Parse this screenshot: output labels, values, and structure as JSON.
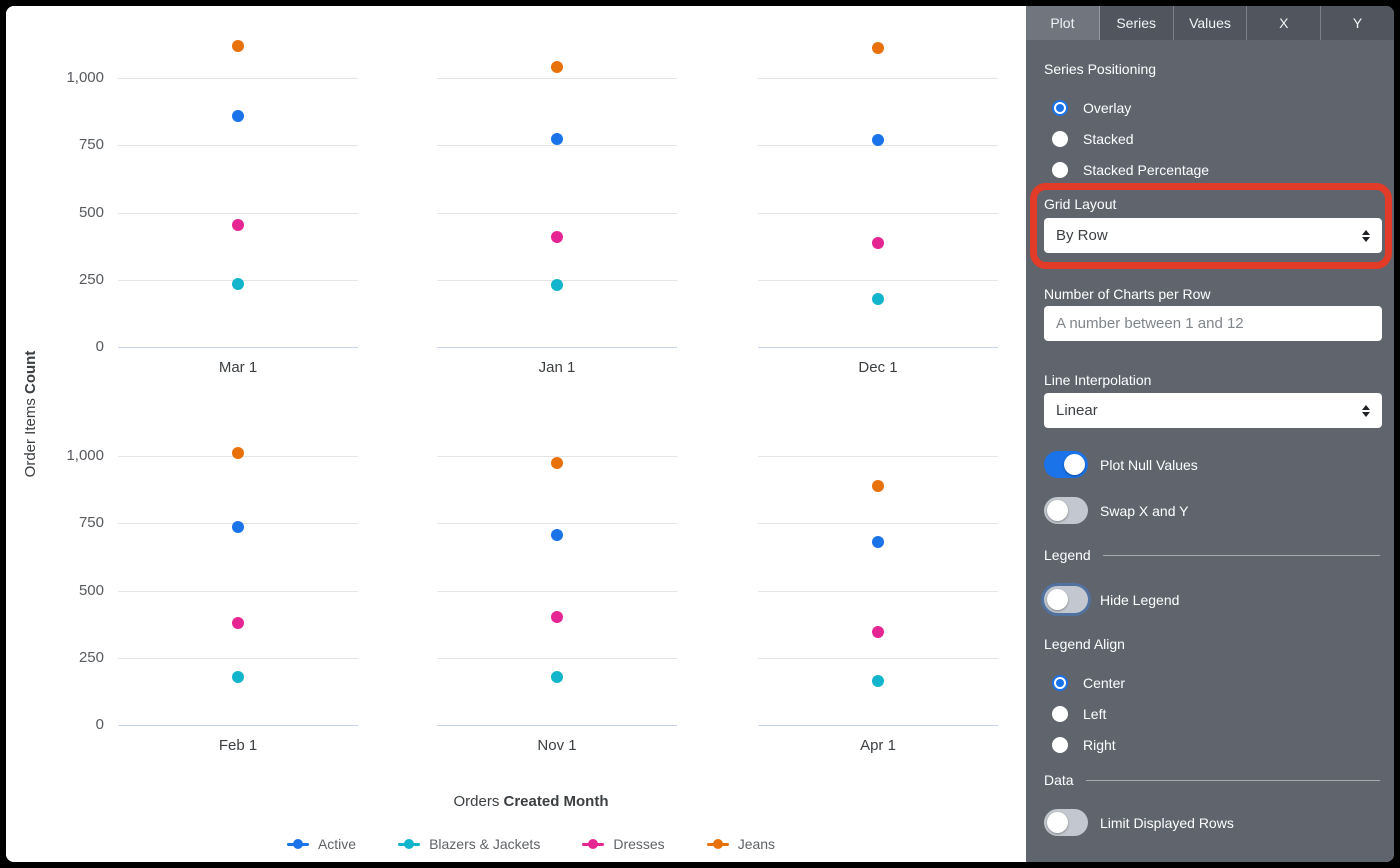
{
  "panel": {
    "tabs": [
      {
        "label": "Plot",
        "active": true
      },
      {
        "label": "Series",
        "active": false
      },
      {
        "label": "Values",
        "active": false
      },
      {
        "label": "X",
        "active": false
      },
      {
        "label": "Y",
        "active": false
      }
    ],
    "series_positioning": {
      "label": "Series Positioning",
      "options": [
        "Overlay",
        "Stacked",
        "Stacked Percentage"
      ],
      "selected": "Overlay"
    },
    "grid_layout": {
      "label": "Grid Layout",
      "value": "By Row",
      "highlighted": true
    },
    "highlight_annotation": {
      "type": "red-box",
      "color": "#e23b28",
      "target": "Grid Layout"
    },
    "charts_per_row": {
      "label": "Number of Charts per Row",
      "value": "",
      "placeholder": "A number between 1 and 12"
    },
    "line_interpolation": {
      "label": "Line Interpolation",
      "value": "Linear"
    },
    "plot_null_values": {
      "label": "Plot Null Values",
      "on": true
    },
    "swap_x_y": {
      "label": "Swap X and Y",
      "on": false
    },
    "legend_section": {
      "title": "Legend"
    },
    "hide_legend": {
      "label": "Hide Legend",
      "on": false,
      "focused": true
    },
    "legend_align": {
      "label": "Legend Align",
      "options": [
        "Center",
        "Left",
        "Right"
      ],
      "selected": "Center"
    },
    "data_section": {
      "title": "Data"
    },
    "limit_displayed_rows": {
      "label": "Limit Displayed Rows",
      "on": false
    }
  },
  "chart_data": {
    "type": "scatter",
    "layout": "small-multiples 2 rows x 3 columns, one x-category per chart",
    "xlabel": {
      "prefix": "Orders",
      "bold": "Created Month"
    },
    "ylabel": {
      "prefix": "Order Items",
      "bold": "Count"
    },
    "categories": [
      "Mar 1",
      "Jan 1",
      "Dec 1",
      "Feb 1",
      "Nov 1",
      "Apr 1"
    ],
    "y_ticks": [
      0,
      250,
      500,
      750,
      1000
    ],
    "y_tick_labels": [
      "0",
      "250",
      "500",
      "750",
      "1,000"
    ],
    "ylim": [
      0,
      1250
    ],
    "grid": true,
    "legend_position": "bottom-center",
    "series": [
      {
        "name": "Active",
        "color": "#1a73e8",
        "values": [
          860,
          775,
          770,
          735,
          705,
          680
        ]
      },
      {
        "name": "Blazers & Jackets",
        "color": "#12b5cb",
        "values": [
          235,
          230,
          180,
          180,
          180,
          165
        ]
      },
      {
        "name": "Dresses",
        "color": "#e52592",
        "values": [
          455,
          410,
          385,
          380,
          400,
          345
        ]
      },
      {
        "name": "Jeans",
        "color": "#e8710a",
        "values": [
          1120,
          1040,
          1110,
          1010,
          975,
          890
        ]
      }
    ]
  }
}
